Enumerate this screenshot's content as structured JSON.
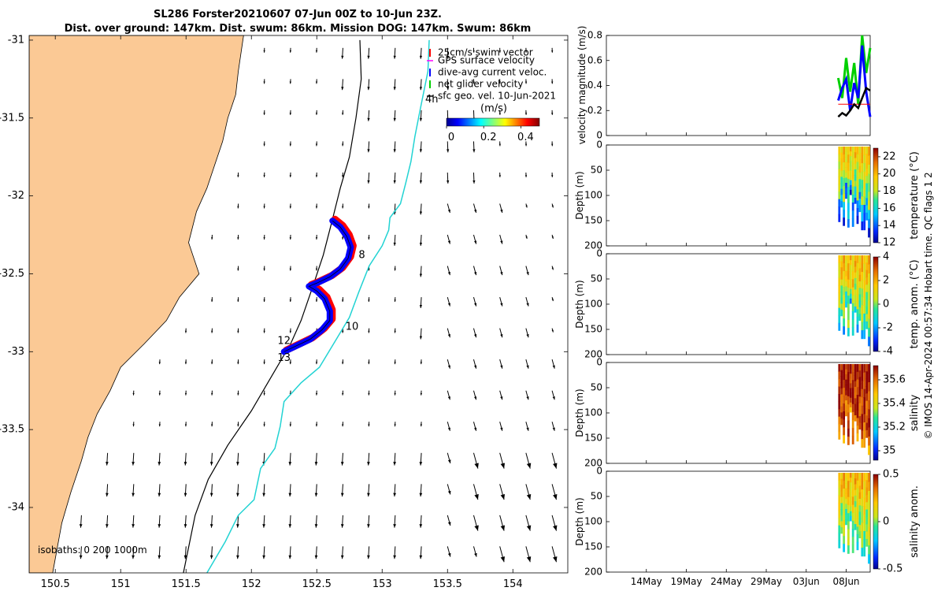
{
  "title": {
    "line1": "SL286 Forster20210607 07-Jun 00Z to 10-Jun 23Z.",
    "line2": "Dist. over ground: 147km. Dist. swum: 86km. Mission DOG: 147km. Swum: 86km"
  },
  "colors": {
    "land": "#fbc995",
    "swim_vector": "#ff0000",
    "gps_velocity": "#ff00ff",
    "dive_avg_current": "#0000ff",
    "net_glider_velocity": "#00d000",
    "sfc_geo_vel": "#000000",
    "isobath_200": "#000000",
    "isobath_1000": "#22d3d3"
  },
  "chart_data": [
    {
      "type": "scatter",
      "name": "map",
      "x_ticks": [
        "150.5",
        "151",
        "151.5",
        "152",
        "152.5",
        "153",
        "153.5",
        "154"
      ],
      "y_ticks": [
        "-31",
        "-31.5",
        "-32",
        "-32.5",
        "-33",
        "-33.5",
        "-34"
      ],
      "xlim": [
        150.3,
        154.42
      ],
      "ylim": [
        -34.42,
        -30.97
      ],
      "legend": {
        "placement": "top-right",
        "entries": [
          "25cm/s swim vector",
          "GPS surface velocity",
          "dive-avg current veloc.",
          "net glider velocity",
          "sfc geo. vel. 10-Jun-2021"
        ]
      },
      "colorbar": {
        "label": "(m/s)",
        "ticks": [
          "0",
          "0.2",
          "0.4"
        ],
        "range": [
          0,
          0.5
        ]
      },
      "isobath_label": "isobaths: 0   200  1000m",
      "track_labels": [
        {
          "text": "4h",
          "lon": 153.33,
          "lat": -31.4
        },
        {
          "text": "8",
          "lon": 152.82,
          "lat": -32.4
        },
        {
          "text": "10",
          "lon": 152.72,
          "lat": -32.86
        },
        {
          "text": "12",
          "lon": 152.2,
          "lat": -32.95
        },
        {
          "text": "13",
          "lon": 152.2,
          "lat": -33.06
        }
      ],
      "glider_track": [
        [
          152.62,
          -32.16
        ],
        [
          152.68,
          -32.2
        ],
        [
          152.73,
          -32.26
        ],
        [
          152.76,
          -32.33
        ],
        [
          152.74,
          -32.4
        ],
        [
          152.68,
          -32.47
        ],
        [
          152.6,
          -32.52
        ],
        [
          152.5,
          -32.56
        ],
        [
          152.44,
          -32.58
        ],
        [
          152.5,
          -32.61
        ],
        [
          152.56,
          -32.66
        ],
        [
          152.6,
          -32.74
        ],
        [
          152.6,
          -32.8
        ],
        [
          152.54,
          -32.86
        ],
        [
          152.45,
          -32.92
        ],
        [
          152.35,
          -32.96
        ],
        [
          152.25,
          -33.0
        ]
      ],
      "isobath_200m": [
        [
          152.83,
          -31.0
        ],
        [
          152.84,
          -31.25
        ],
        [
          152.8,
          -31.5
        ],
        [
          152.75,
          -31.75
        ],
        [
          152.68,
          -31.95
        ],
        [
          152.62,
          -32.15
        ],
        [
          152.55,
          -32.38
        ],
        [
          152.47,
          -32.58
        ],
        [
          152.38,
          -32.8
        ],
        [
          152.3,
          -32.95
        ],
        [
          152.16,
          -33.15
        ],
        [
          152.0,
          -33.38
        ],
        [
          151.82,
          -33.6
        ],
        [
          151.67,
          -33.82
        ],
        [
          151.57,
          -34.05
        ],
        [
          151.48,
          -34.42
        ]
      ],
      "isobath_1000m": [
        [
          153.36,
          -31.0
        ],
        [
          153.35,
          -31.2
        ],
        [
          153.29,
          -31.45
        ],
        [
          153.25,
          -31.62
        ],
        [
          153.22,
          -31.78
        ],
        [
          153.18,
          -31.92
        ],
        [
          153.14,
          -32.05
        ],
        [
          153.06,
          -32.14
        ],
        [
          153.05,
          -32.22
        ],
        [
          153.0,
          -32.32
        ],
        [
          152.9,
          -32.45
        ],
        [
          152.82,
          -32.62
        ],
        [
          152.75,
          -32.78
        ],
        [
          152.65,
          -32.92
        ],
        [
          152.52,
          -33.1
        ],
        [
          152.38,
          -33.2
        ],
        [
          152.25,
          -33.32
        ],
        [
          152.22,
          -33.48
        ],
        [
          152.18,
          -33.62
        ],
        [
          152.07,
          -33.75
        ],
        [
          152.02,
          -33.95
        ],
        [
          151.9,
          -34.05
        ],
        [
          151.8,
          -34.22
        ],
        [
          151.66,
          -34.42
        ]
      ],
      "coastline": [
        [
          151.94,
          -30.97
        ],
        [
          151.9,
          -31.2
        ],
        [
          151.88,
          -31.35
        ],
        [
          151.82,
          -31.5
        ],
        [
          151.78,
          -31.65
        ],
        [
          151.72,
          -31.8
        ],
        [
          151.66,
          -31.95
        ],
        [
          151.58,
          -32.1
        ],
        [
          151.55,
          -32.2
        ],
        [
          151.52,
          -32.3
        ],
        [
          151.6,
          -32.5
        ],
        [
          151.45,
          -32.65
        ],
        [
          151.35,
          -32.8
        ],
        [
          151.18,
          -32.95
        ],
        [
          151.0,
          -33.1
        ],
        [
          150.92,
          -33.25
        ],
        [
          150.82,
          -33.4
        ],
        [
          150.75,
          -33.55
        ],
        [
          150.7,
          -33.7
        ],
        [
          150.62,
          -33.9
        ],
        [
          150.55,
          -34.1
        ],
        [
          150.48,
          -34.42
        ]
      ]
    },
    {
      "type": "line",
      "name": "velocity",
      "ylabel": "velocity magnitude (m/s)",
      "y_ticks": [
        "0",
        "0.2",
        "0.4",
        "0.6",
        "0.8"
      ],
      "ylim": [
        0,
        0.8
      ],
      "x": [
        "2021-06-07",
        "2021-06-07T12",
        "2021-06-08",
        "2021-06-08T12",
        "2021-06-09",
        "2021-06-09T12",
        "2021-06-10",
        "2021-06-10T12",
        "2021-06-11"
      ],
      "series": [
        {
          "name": "net glider velocity",
          "color": "#00d000",
          "values": [
            0.46,
            0.3,
            0.62,
            0.35,
            0.58,
            0.25,
            0.8,
            0.5,
            0.7
          ]
        },
        {
          "name": "dive-avg current veloc.",
          "color": "#0000ff",
          "values": [
            0.28,
            0.38,
            0.45,
            0.2,
            0.42,
            0.3,
            0.72,
            0.35,
            0.15
          ]
        },
        {
          "name": "25cm/s swim vector",
          "color": "#ff0000",
          "values": [
            0.25,
            0.25,
            0.25,
            0.25,
            0.25,
            0.25,
            0.25,
            0.25,
            0.25
          ]
        },
        {
          "name": "sfc geo. vel. 10-Jun-2021",
          "color": "#000000",
          "values": [
            0.15,
            0.18,
            0.16,
            0.2,
            0.25,
            0.22,
            0.3,
            0.38,
            0.36
          ]
        }
      ]
    },
    {
      "type": "heatmap",
      "name": "temperature",
      "ylabel": "Depth (m)",
      "colorbar_label": "temperature (°C)",
      "y_ticks": [
        "0",
        "50",
        "100",
        "150",
        "200"
      ],
      "colorbar_ticks": [
        "22",
        "20",
        "18",
        "16",
        "14",
        "12"
      ],
      "colorbar_range": [
        12,
        23
      ]
    },
    {
      "type": "heatmap",
      "name": "temp_anom",
      "ylabel": "Depth (m)",
      "colorbar_label": "temp. anom. (°C)",
      "y_ticks": [
        "0",
        "50",
        "100",
        "150",
        "200"
      ],
      "colorbar_ticks": [
        "4",
        "2",
        "0",
        "-2",
        "-4"
      ],
      "colorbar_range": [
        -4,
        4
      ]
    },
    {
      "type": "heatmap",
      "name": "salinity",
      "ylabel": "Depth (m)",
      "colorbar_label": "salinity",
      "y_ticks": [
        "0",
        "50",
        "100",
        "150",
        "200"
      ],
      "colorbar_ticks": [
        "35.6",
        "35.4",
        "35.2",
        "35"
      ],
      "colorbar_range": [
        34.92,
        35.72
      ]
    },
    {
      "type": "heatmap",
      "name": "salinity_anom",
      "ylabel": "Depth (m)",
      "colorbar_label": "salinity anom.",
      "y_ticks": [
        "0",
        "50",
        "100",
        "150",
        "200"
      ],
      "colorbar_ticks": [
        "0.5",
        "0",
        "-0.5"
      ],
      "colorbar_range": [
        -0.5,
        0.5
      ],
      "x_ticks": [
        "14May",
        "19May",
        "24May",
        "29May",
        "03Jun",
        "08Jun"
      ]
    }
  ],
  "footer": "© IMOS 14-Apr-2024 00:57:34 Hobart time. QC flags 1  2"
}
